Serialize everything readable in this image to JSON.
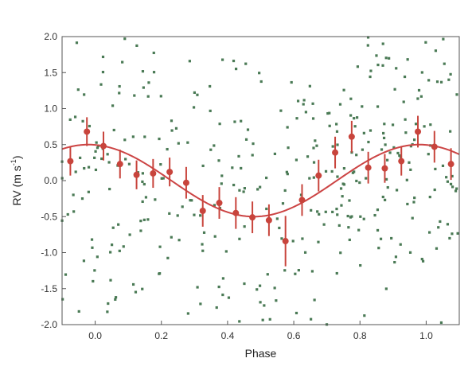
{
  "chart_data": {
    "type": "scatter",
    "xlabel": "Phase",
    "ylabel_parts": {
      "main": "RV (m s",
      "sup": "-1",
      "close": ")"
    },
    "xlim": [
      -0.1,
      1.1
    ],
    "ylim": [
      -2.0,
      2.0
    ],
    "x_ticks": [
      0.0,
      0.2,
      0.4,
      0.6,
      0.8,
      1.0
    ],
    "x_tick_labels": [
      "0.0",
      "0.2",
      "0.4",
      "0.6",
      "0.8",
      "1.0"
    ],
    "y_ticks": [
      -2.0,
      -1.5,
      -1.0,
      -0.5,
      0.0,
      0.5,
      1.0,
      1.5,
      2.0
    ],
    "y_tick_labels": [
      "-2.0",
      "-1.5",
      "-1.0",
      "-0.5",
      "0.0",
      "0.5",
      "1.0",
      "1.5",
      "2.0"
    ],
    "grid": false,
    "colors": {
      "raw": "#4a7a55",
      "binned": "#c8443c",
      "model": "#cc4444",
      "axes": "#555555"
    },
    "series": [
      {
        "kind": "raw_points",
        "random_seed": 7,
        "count": 420,
        "note_style": "small green squares scattered around the sinusoid"
      },
      {
        "kind": "binned_with_errorbars",
        "x": [
          -0.075,
          -0.025,
          0.025,
          0.075,
          0.125,
          0.175,
          0.225,
          0.275,
          0.325,
          0.375,
          0.425,
          0.475,
          0.525,
          0.575,
          0.625,
          0.675,
          0.725,
          0.775,
          0.825,
          0.875,
          0.925,
          0.975,
          1.025,
          1.075
        ],
        "y": [
          0.27,
          0.68,
          0.48,
          0.23,
          0.08,
          0.1,
          0.12,
          -0.03,
          -0.42,
          -0.31,
          -0.45,
          -0.51,
          -0.55,
          -0.84,
          -0.27,
          0.07,
          0.39,
          0.61,
          0.18,
          0.17,
          0.27,
          0.68,
          0.47,
          0.23
        ],
        "err": [
          0.2,
          0.2,
          0.2,
          0.2,
          0.2,
          0.2,
          0.2,
          0.22,
          0.22,
          0.22,
          0.22,
          0.22,
          0.22,
          0.35,
          0.22,
          0.22,
          0.22,
          0.22,
          0.22,
          0.2,
          0.2,
          0.22,
          0.22,
          0.22
        ]
      },
      {
        "kind": "model_curve",
        "amplitude": 0.5,
        "phase_of_maximum": -0.02
      }
    ]
  }
}
